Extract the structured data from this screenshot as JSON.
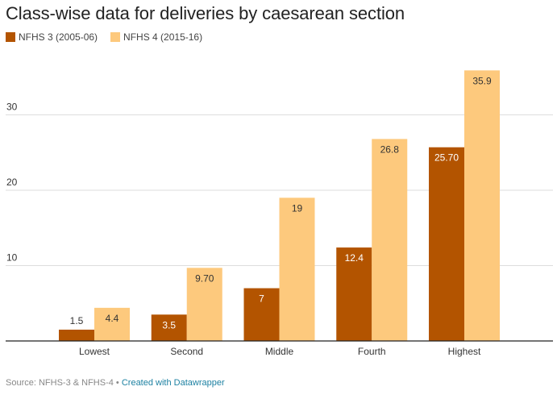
{
  "chart_data": {
    "type": "bar",
    "title": "Class-wise data for deliveries by caesarean section",
    "xlabel": "",
    "ylabel": "",
    "categories": [
      "Lowest",
      "Second",
      "Middle",
      "Fourth",
      "Highest"
    ],
    "series": [
      {
        "name": "NFHS 3 (2005-06)",
        "color": "#b35400",
        "values": [
          1.5,
          3.5,
          7,
          12.4,
          25.7
        ],
        "labels": [
          "1.5",
          "3.5",
          "7",
          "12.4",
          "25.70"
        ]
      },
      {
        "name": "NFHS 4 (2015-16)",
        "color": "#fdc97d",
        "values": [
          4.4,
          9.7,
          19,
          26.8,
          35.9
        ],
        "labels": [
          "4.4",
          "9.70",
          "19",
          "26.8",
          "35.9"
        ]
      }
    ],
    "yticks": [
      10,
      20,
      30
    ],
    "ylim": [
      0,
      38
    ],
    "grid": true,
    "legend_position": "top-left"
  },
  "footer": {
    "source": "Source: NFHS-3 & NFHS-4",
    "separator": " • ",
    "credit": "Created with Datawrapper"
  }
}
